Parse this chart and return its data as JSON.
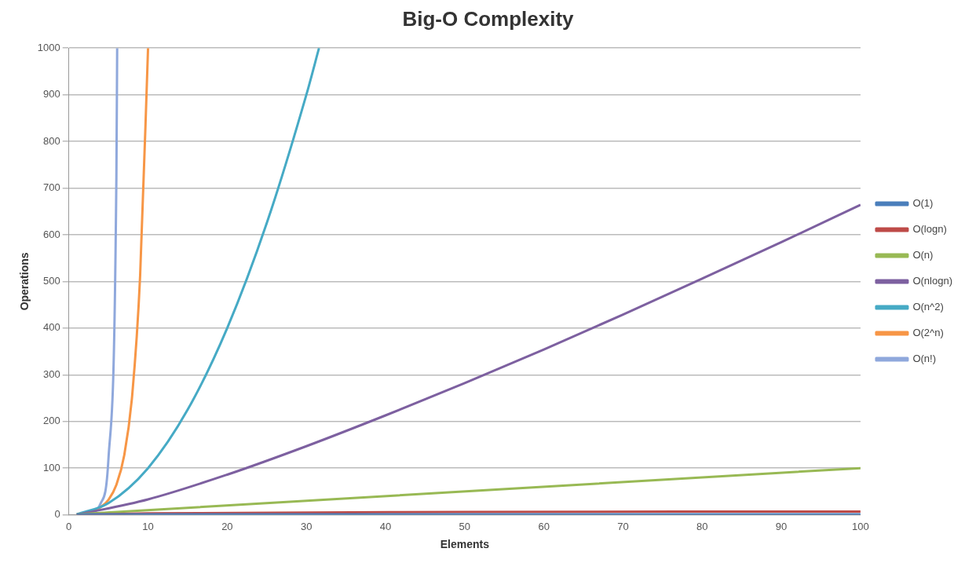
{
  "chart_data": {
    "type": "line",
    "title": "Big-O Complexity",
    "xlabel": "Elements",
    "ylabel": "Operations",
    "xlim": [
      0,
      100
    ],
    "xticks": [
      0,
      10,
      20,
      30,
      40,
      50,
      60,
      70,
      80,
      90,
      100
    ],
    "ylim": [
      0,
      1000
    ],
    "yticks": [
      0,
      100,
      200,
      300,
      400,
      500,
      600,
      700,
      800,
      900,
      1000
    ],
    "grid": "y",
    "legend": "right",
    "marker": "none",
    "line_style": "solid",
    "series": [
      {
        "name": "O(1)",
        "color": "#4a7ebb",
        "x": [
          1,
          100
        ],
        "values": [
          1,
          1
        ]
      },
      {
        "name": "O(logn)",
        "color": "#be4b48",
        "x": [
          1,
          10,
          50,
          100
        ],
        "values": [
          0,
          3,
          6,
          7
        ]
      },
      {
        "name": "O(n)",
        "color": "#98b954",
        "x": [
          1,
          100
        ],
        "values": [
          1,
          100
        ]
      },
      {
        "name": "O(nlogn)",
        "color": "#7d60a0",
        "x": [
          1,
          10,
          20,
          30,
          40,
          50,
          60,
          70,
          80,
          90,
          100
        ],
        "values": [
          0,
          33,
          86,
          147,
          213,
          282,
          354,
          429,
          506,
          584,
          664
        ]
      },
      {
        "name": "O(n^2)",
        "color": "#46aac5",
        "x": [
          1,
          5,
          10,
          15,
          20,
          25,
          30,
          31.6
        ],
        "values": [
          1,
          25,
          100,
          225,
          400,
          625,
          900,
          1000
        ]
      },
      {
        "name": "O(2^n)",
        "color": "#f79646",
        "x": [
          3,
          4,
          5,
          6,
          7,
          8,
          9,
          10
        ],
        "values": [
          8,
          16,
          32,
          64,
          128,
          256,
          512,
          1000
        ]
      },
      {
        "name": "O(n!)",
        "color": "#8fa8dc",
        "x": [
          1,
          2,
          3,
          4,
          5,
          6,
          6.1
        ],
        "values": [
          1,
          2,
          6,
          24,
          120,
          720,
          1000
        ]
      }
    ]
  }
}
